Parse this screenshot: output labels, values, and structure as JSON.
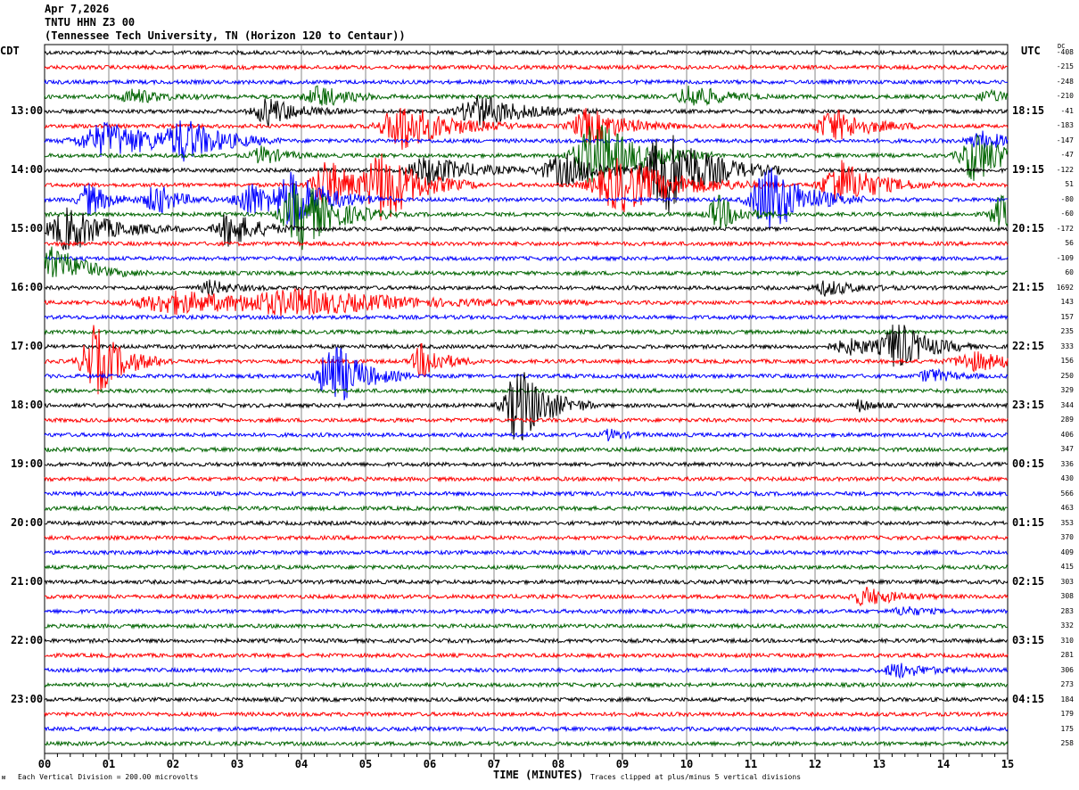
{
  "header": {
    "date": "Apr 7,2026",
    "station": "TNTU HHN Z3 00",
    "location": "(Tennessee Tech University, TN (Horizon 120 to Centaur))"
  },
  "left_tz": "CDT",
  "right_tz": "UTC",
  "dc_label": "DC",
  "footer": {
    "scale": "Each Vertical Division =  200.00 microvolts",
    "xlabel": "TIME (MINUTES)",
    "clip": "Traces clipped at plus/minus 5 vertical divisions"
  },
  "chart_data": {
    "type": "line",
    "title": "TNTU HHN Z3 00 helicorder",
    "xlabel": "TIME (MINUTES)",
    "xlim": [
      0,
      15
    ],
    "x_ticks": [
      "00",
      "01",
      "02",
      "03",
      "04",
      "05",
      "06",
      "07",
      "08",
      "09",
      "10",
      "11",
      "12",
      "13",
      "14",
      "15"
    ],
    "trace_colors": [
      "#000000",
      "#ff0000",
      "#0000ff",
      "#006400"
    ],
    "trace_count": 48,
    "left_hour_labels": [
      {
        "trace": 4,
        "label": "13:00"
      },
      {
        "trace": 8,
        "label": "14:00"
      },
      {
        "trace": 12,
        "label": "15:00"
      },
      {
        "trace": 16,
        "label": "16:00"
      },
      {
        "trace": 20,
        "label": "17:00"
      },
      {
        "trace": 24,
        "label": "18:00"
      },
      {
        "trace": 28,
        "label": "19:00"
      },
      {
        "trace": 32,
        "label": "20:00"
      },
      {
        "trace": 36,
        "label": "21:00"
      },
      {
        "trace": 40,
        "label": "22:00"
      },
      {
        "trace": 44,
        "label": "23:00"
      }
    ],
    "right_hour_labels": [
      {
        "trace": 4,
        "label": "18:15"
      },
      {
        "trace": 8,
        "label": "19:15"
      },
      {
        "trace": 12,
        "label": "20:15"
      },
      {
        "trace": 16,
        "label": "21:15"
      },
      {
        "trace": 20,
        "label": "22:15"
      },
      {
        "trace": 24,
        "label": "23:15"
      },
      {
        "trace": 28,
        "label": "00:15"
      },
      {
        "trace": 32,
        "label": "01:15"
      },
      {
        "trace": 36,
        "label": "02:15"
      },
      {
        "trace": 40,
        "label": "03:15"
      },
      {
        "trace": 44,
        "label": "04:15"
      }
    ],
    "dc_offsets": [
      "-408",
      "-215",
      "-248",
      "-210",
      "-41",
      "-183",
      "-147",
      "-47",
      "-122",
      "51",
      "-80",
      "-60",
      "-172",
      "56",
      "-109",
      "60",
      "1692",
      "143",
      "157",
      "235",
      "333",
      "156",
      "250",
      "329",
      "344",
      "289",
      "406",
      "347",
      "336",
      "430",
      "566",
      "463",
      "353",
      "370",
      "409",
      "415",
      "303",
      "308",
      "283",
      "332",
      "310",
      "281",
      "306",
      "273",
      "184",
      "179",
      "175",
      "258"
    ],
    "events": [
      [
        3,
        1.4,
        8,
        0.4
      ],
      [
        3,
        4.3,
        12,
        0.4
      ],
      [
        3,
        10.1,
        14,
        0.4
      ],
      [
        3,
        14.7,
        6,
        0.4
      ],
      [
        4,
        3.5,
        16,
        0.4
      ],
      [
        4,
        6.8,
        18,
        0.6
      ],
      [
        5,
        5.6,
        28,
        0.6
      ],
      [
        5,
        8.5,
        20,
        0.5
      ],
      [
        5,
        12.3,
        18,
        0.5
      ],
      [
        6,
        1.0,
        20,
        0.8
      ],
      [
        6,
        2.2,
        20,
        0.5
      ],
      [
        6,
        14.6,
        10,
        0.4
      ],
      [
        7,
        8.6,
        40,
        0.6
      ],
      [
        7,
        14.5,
        30,
        0.4
      ],
      [
        7,
        3.4,
        10,
        0.3
      ],
      [
        8,
        6.0,
        16,
        0.6
      ],
      [
        8,
        8.1,
        18,
        0.6
      ],
      [
        8,
        9.7,
        50,
        0.6
      ],
      [
        9,
        4.4,
        30,
        0.4
      ],
      [
        9,
        5.3,
        40,
        0.5
      ],
      [
        9,
        9.0,
        30,
        0.8
      ],
      [
        9,
        12.4,
        28,
        0.5
      ],
      [
        10,
        0.7,
        18,
        0.3
      ],
      [
        10,
        1.75,
        18,
        0.3
      ],
      [
        10,
        3.2,
        20,
        0.4
      ],
      [
        10,
        3.9,
        30,
        0.5
      ],
      [
        10,
        11.3,
        40,
        0.5
      ],
      [
        11,
        4.0,
        40,
        0.5
      ],
      [
        11,
        10.5,
        20,
        0.3
      ],
      [
        11,
        14.9,
        20,
        0.3
      ],
      [
        12,
        0.4,
        24,
        0.6
      ],
      [
        12,
        2.9,
        20,
        0.4
      ],
      [
        15,
        0.1,
        20,
        0.5
      ],
      [
        16,
        2.6,
        8,
        0.3
      ],
      [
        16,
        12.2,
        8,
        0.4
      ],
      [
        17,
        2.1,
        12,
        1.2
      ],
      [
        17,
        4.0,
        12,
        1.5
      ],
      [
        20,
        13.3,
        26,
        0.4
      ],
      [
        20,
        12.6,
        8,
        0.6
      ],
      [
        21,
        0.8,
        40,
        0.4
      ],
      [
        21,
        5.9,
        20,
        0.3
      ],
      [
        21,
        14.5,
        10,
        0.6
      ],
      [
        22,
        4.5,
        40,
        0.4
      ],
      [
        22,
        13.8,
        8,
        0.3
      ],
      [
        24,
        7.4,
        45,
        0.4
      ],
      [
        24,
        12.7,
        6,
        0.2
      ],
      [
        26,
        8.8,
        6,
        0.2
      ],
      [
        37,
        12.8,
        10,
        0.4
      ],
      [
        38,
        13.4,
        5,
        0.3
      ],
      [
        42,
        13.3,
        8,
        0.4
      ]
    ]
  }
}
